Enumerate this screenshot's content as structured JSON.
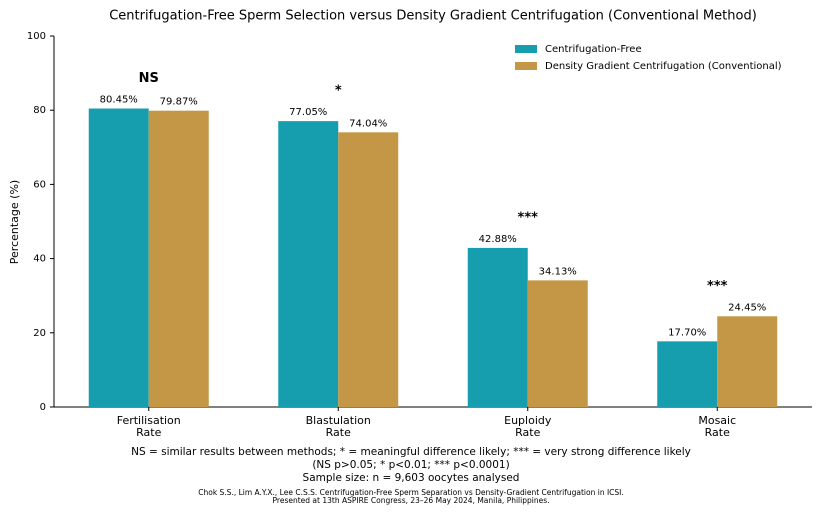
{
  "chart_data": {
    "type": "bar",
    "title": "Centrifugation-Free Sperm Selection versus Density Gradient Centrifugation (Conventional Method)",
    "ylabel": "Percentage (%)",
    "categories": [
      "Fertilisation\nRate",
      "Blastulation\nRate",
      "Euploidy\nRate",
      "Mosaic\nRate"
    ],
    "series": [
      {
        "name": "Centrifugation-Free",
        "color": "#169dae",
        "values": [
          80.45,
          77.05,
          42.88,
          17.7
        ],
        "value_labels": [
          "80.45%",
          "77.05%",
          "42.88%",
          "17.70%"
        ]
      },
      {
        "name": "Density Gradient Centrifugation (Conventional)",
        "color": "#c39746",
        "values": [
          79.87,
          74.04,
          34.13,
          24.45
        ],
        "value_labels": [
          "79.87%",
          "74.04%",
          "34.13%",
          "24.45%"
        ]
      }
    ],
    "significance": [
      "NS",
      "*",
      "***",
      "***"
    ],
    "ylim": [
      0,
      100
    ],
    "yticks": [
      0,
      20,
      40,
      60,
      80,
      100
    ],
    "legend": "upper right",
    "notes": [
      "NS = similar results between methods;  * = meaningful difference likely;  *** = very strong difference likely",
      "(NS p>0.05; * p<0.01; *** p<0.0001)",
      "Sample size: n = 9,603 oocytes analysed"
    ],
    "source": [
      "Chok S.S., Lim A.Y.X., Lee C.S.S. Centrifugation-Free Sperm Separation vs Density-Gradient Centrifugation in ICSI.",
      "Presented at 13th ASPIRE Congress, 23–26 May 2024, Manila, Philippines."
    ]
  }
}
